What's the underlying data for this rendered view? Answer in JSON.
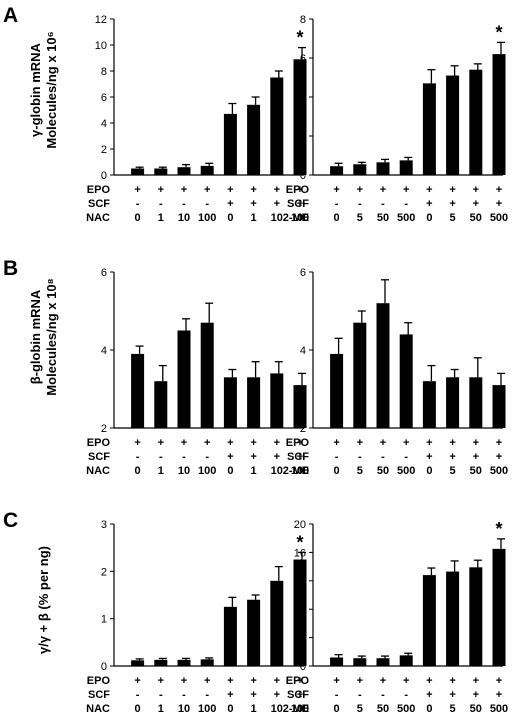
{
  "figure": {
    "panel_letters": [
      "A",
      "B",
      "C"
    ],
    "row_ylabels": [
      [
        "γ-globin mRNA",
        "Molecules/ng x 10⁶"
      ],
      [
        "β-globin mRNA",
        "Molecules/ng x 10⁸"
      ],
      [
        "γ/γ + β (% per ng)"
      ]
    ],
    "condition_labels_left": [
      "EPO",
      "SCF",
      "NAC"
    ],
    "condition_labels_right": [
      "EPO",
      "SCF",
      "2-ME"
    ],
    "epo_row": [
      "+",
      "+",
      "+",
      "+",
      "+",
      "+",
      "+",
      "+"
    ],
    "scf_row": [
      "-",
      "-",
      "-",
      "-",
      "+",
      "+",
      "+",
      "+"
    ],
    "nac_doses": [
      "0",
      "1",
      "10",
      "100",
      "0",
      "1",
      "10",
      "100"
    ],
    "me_doses": [
      "0",
      "5",
      "50",
      "500",
      "0",
      "5",
      "50",
      "500"
    ],
    "colors": {
      "bar": "#000000",
      "axis": "#000000"
    }
  },
  "chart_data": [
    {
      "panel": "A",
      "side": "left",
      "type": "bar",
      "treatment": "NAC",
      "categories": [
        "0",
        "1",
        "10",
        "100",
        "0",
        "1",
        "10",
        "100"
      ],
      "values": [
        0.5,
        0.5,
        0.6,
        0.7,
        4.7,
        5.4,
        7.5,
        8.9
      ],
      "errors": [
        0.1,
        0.1,
        0.2,
        0.2,
        0.8,
        0.6,
        0.5,
        0.9
      ],
      "ylim": [
        0,
        12
      ],
      "yticks": [
        0,
        2,
        4,
        6,
        8,
        10,
        12
      ],
      "significant": [
        false,
        false,
        false,
        false,
        false,
        false,
        false,
        true
      ]
    },
    {
      "panel": "A",
      "side": "right",
      "type": "bar",
      "treatment": "2-ME",
      "categories": [
        "0",
        "5",
        "50",
        "500",
        "0",
        "5",
        "50",
        "500"
      ],
      "values": [
        0.45,
        0.55,
        0.65,
        0.75,
        4.7,
        5.1,
        5.4,
        6.2
      ],
      "errors": [
        0.15,
        0.1,
        0.15,
        0.15,
        0.7,
        0.5,
        0.3,
        0.6
      ],
      "ylim": [
        0,
        8
      ],
      "yticks": [
        0,
        2,
        4,
        6,
        8
      ],
      "significant": [
        false,
        false,
        false,
        false,
        false,
        false,
        false,
        true
      ]
    },
    {
      "panel": "B",
      "side": "left",
      "type": "bar",
      "treatment": "NAC",
      "categories": [
        "0",
        "1",
        "10",
        "100",
        "0",
        "1",
        "10",
        "100"
      ],
      "values": [
        3.9,
        3.2,
        4.5,
        4.7,
        3.3,
        3.3,
        3.4,
        3.1
      ],
      "errors": [
        0.2,
        0.4,
        0.3,
        0.5,
        0.2,
        0.4,
        0.3,
        0.3
      ],
      "ylim": [
        2,
        6
      ],
      "yticks": [
        2,
        4,
        6
      ],
      "significant": [
        false,
        false,
        false,
        false,
        false,
        false,
        false,
        false
      ]
    },
    {
      "panel": "B",
      "side": "right",
      "type": "bar",
      "treatment": "2-ME",
      "categories": [
        "0",
        "5",
        "50",
        "500",
        "0",
        "5",
        "50",
        "500"
      ],
      "values": [
        3.9,
        4.7,
        5.2,
        4.4,
        3.2,
        3.3,
        3.3,
        3.1
      ],
      "errors": [
        0.4,
        0.3,
        0.6,
        0.3,
        0.4,
        0.2,
        0.5,
        0.3
      ],
      "ylim": [
        2,
        6
      ],
      "yticks": [
        2,
        4,
        6
      ],
      "significant": [
        false,
        false,
        false,
        false,
        false,
        false,
        false,
        false
      ]
    },
    {
      "panel": "C",
      "side": "left",
      "type": "bar",
      "treatment": "NAC",
      "categories": [
        "0",
        "1",
        "10",
        "100",
        "0",
        "1",
        "10",
        "100"
      ],
      "values": [
        0.12,
        0.13,
        0.13,
        0.14,
        1.25,
        1.4,
        1.8,
        2.25
      ],
      "errors": [
        0.03,
        0.03,
        0.03,
        0.03,
        0.2,
        0.1,
        0.3,
        0.15
      ],
      "ylim": [
        0,
        3
      ],
      "yticks": [
        0,
        1,
        2,
        3
      ],
      "significant": [
        false,
        false,
        false,
        false,
        false,
        false,
        false,
        true
      ]
    },
    {
      "panel": "C",
      "side": "right",
      "type": "bar",
      "treatment": "2-ME",
      "categories": [
        "0",
        "5",
        "50",
        "500",
        "0",
        "5",
        "50",
        "500"
      ],
      "values": [
        1.2,
        1.1,
        1.1,
        1.5,
        12.8,
        13.3,
        13.9,
        16.5
      ],
      "errors": [
        0.4,
        0.3,
        0.3,
        0.3,
        1.0,
        1.5,
        1.0,
        1.4
      ],
      "ylim": [
        0,
        20
      ],
      "yticks": [
        0,
        4,
        8,
        12,
        16,
        20
      ],
      "significant": [
        false,
        false,
        false,
        false,
        false,
        false,
        false,
        true
      ]
    }
  ]
}
